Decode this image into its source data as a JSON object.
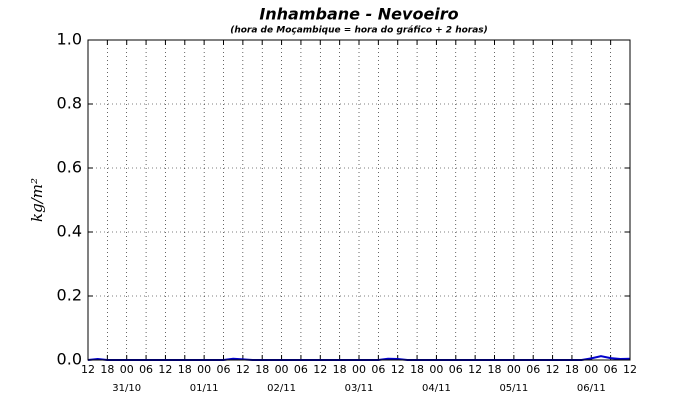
{
  "chart_data": {
    "type": "line",
    "title": "Inhambane - Nevoeiro",
    "subtitle": "(hora de Moçambique = hora do gráfico + 2 horas)",
    "ylabel": "kg/m²",
    "x": [
      0,
      3,
      6,
      9,
      12,
      15,
      18,
      21,
      24,
      27,
      30,
      33,
      36,
      39,
      42,
      45,
      48,
      51,
      54,
      57,
      60,
      63,
      66,
      69,
      72,
      75,
      78,
      81,
      84,
      87,
      90,
      93,
      96,
      99,
      102,
      105,
      108,
      111,
      114,
      117,
      120,
      123,
      126,
      129,
      132,
      135,
      138,
      141,
      144,
      147,
      150,
      153,
      156,
      159,
      162,
      165,
      168
    ],
    "series": [
      {
        "name": "Nevoeiro",
        "color": "#0000cc",
        "values": [
          0,
          0.003,
          0,
          0,
          0,
          0,
          0,
          0,
          0,
          0,
          0,
          0,
          0,
          0,
          0,
          0.004,
          0.002,
          0,
          0,
          0,
          0,
          0,
          0,
          0,
          0,
          0,
          0,
          0,
          0,
          0,
          0,
          0.004,
          0.003,
          0,
          0,
          0,
          0,
          0,
          0,
          0,
          0,
          0,
          0,
          0,
          0,
          0,
          0,
          0,
          0,
          0,
          0,
          0,
          0.005,
          0.012,
          0.006,
          0.003,
          0.004
        ]
      }
    ],
    "xlim": [
      0,
      168
    ],
    "xticks": [
      {
        "value": 0,
        "label": "12"
      },
      {
        "value": 6,
        "label": "18"
      },
      {
        "value": 12,
        "label": "00"
      },
      {
        "value": 18,
        "label": "06"
      },
      {
        "value": 24,
        "label": "12"
      },
      {
        "value": 30,
        "label": "18"
      },
      {
        "value": 36,
        "label": "00"
      },
      {
        "value": 42,
        "label": "06"
      },
      {
        "value": 48,
        "label": "12"
      },
      {
        "value": 54,
        "label": "18"
      },
      {
        "value": 60,
        "label": "00"
      },
      {
        "value": 66,
        "label": "06"
      },
      {
        "value": 72,
        "label": "12"
      },
      {
        "value": 78,
        "label": "18"
      },
      {
        "value": 84,
        "label": "00"
      },
      {
        "value": 90,
        "label": "06"
      },
      {
        "value": 96,
        "label": "12"
      },
      {
        "value": 102,
        "label": "18"
      },
      {
        "value": 108,
        "label": "00"
      },
      {
        "value": 114,
        "label": "06"
      },
      {
        "value": 120,
        "label": "12"
      },
      {
        "value": 126,
        "label": "18"
      },
      {
        "value": 132,
        "label": "00"
      },
      {
        "value": 138,
        "label": "06"
      },
      {
        "value": 144,
        "label": "12"
      },
      {
        "value": 150,
        "label": "18"
      },
      {
        "value": 156,
        "label": "00"
      },
      {
        "value": 162,
        "label": "06"
      },
      {
        "value": 168,
        "label": "12"
      }
    ],
    "date_ticks": [
      {
        "value": 12,
        "label": "31/10"
      },
      {
        "value": 36,
        "label": "01/11"
      },
      {
        "value": 60,
        "label": "02/11"
      },
      {
        "value": 84,
        "label": "03/11"
      },
      {
        "value": 108,
        "label": "04/11"
      },
      {
        "value": 132,
        "label": "05/11"
      },
      {
        "value": 156,
        "label": "06/11"
      }
    ],
    "ylim": [
      0,
      1
    ],
    "yticks": [
      {
        "value": 0,
        "label": "0.0"
      },
      {
        "value": 0.2,
        "label": "0.2"
      },
      {
        "value": 0.4,
        "label": "0.4"
      },
      {
        "value": 0.6,
        "label": "0.6"
      },
      {
        "value": 0.8,
        "label": "0.8"
      },
      {
        "value": 1,
        "label": "1.0"
      }
    ],
    "grid": true
  }
}
